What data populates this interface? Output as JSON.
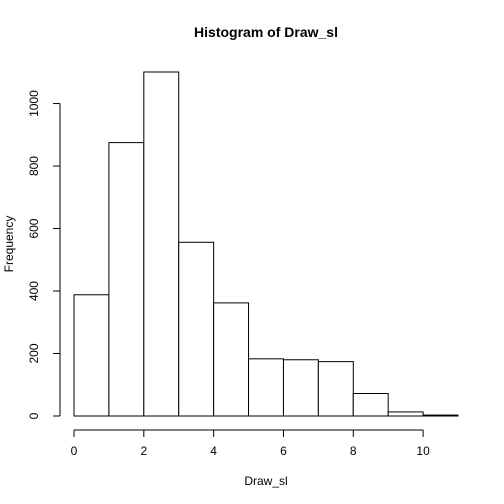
{
  "chart_data": {
    "type": "bar",
    "title": "Histogram of Draw_sl",
    "xlabel": "Draw_sl",
    "ylabel": "Frequency",
    "bin_edges": [
      0,
      1,
      2,
      3,
      4,
      5,
      6,
      7,
      8,
      9,
      10,
      11
    ],
    "values": [
      388,
      875,
      1101,
      556,
      362,
      183,
      180,
      174,
      72,
      13,
      3
    ],
    "xlim": [
      0,
      11
    ],
    "ylim": [
      0,
      1101
    ],
    "xticks": [
      0,
      2,
      4,
      6,
      8,
      10
    ],
    "yticks": [
      0,
      200,
      400,
      600,
      800,
      1000
    ],
    "grid": false
  }
}
